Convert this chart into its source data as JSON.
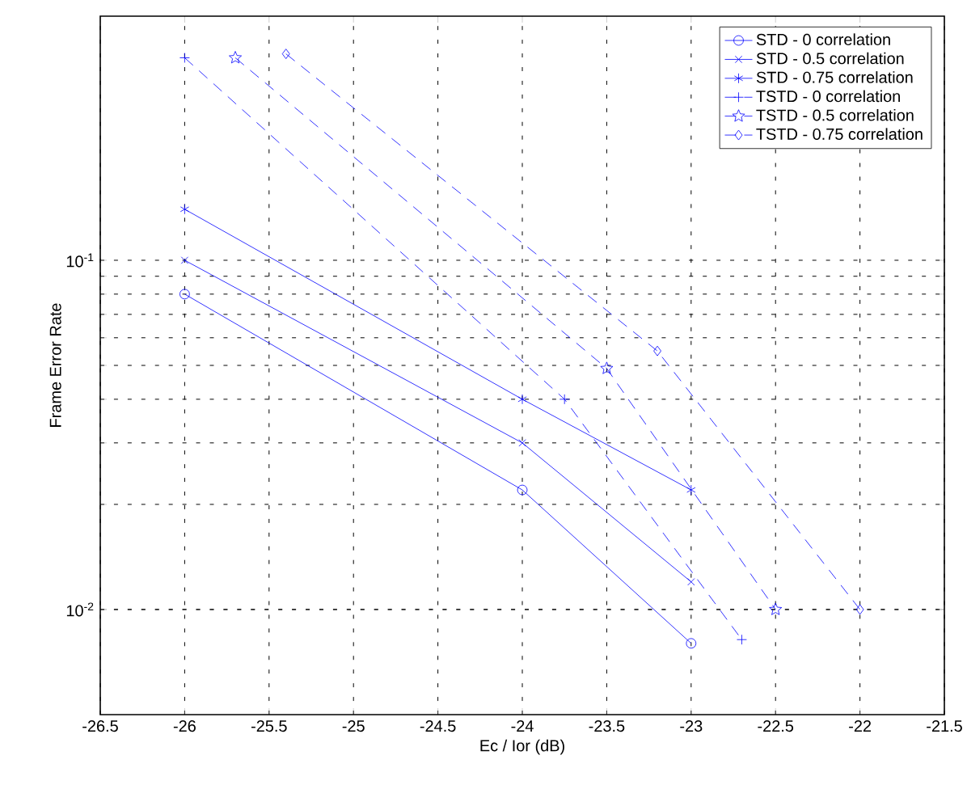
{
  "chart_data": {
    "type": "line",
    "xlabel": "Ec / Ior (dB)",
    "ylabel": "Frame Error Rate",
    "log": "y",
    "grid": true,
    "legend": "top right",
    "xlim": [
      -26.5,
      -21.5
    ],
    "xticks": [
      -26.5,
      -26,
      -25.5,
      -25,
      -24.5,
      -24,
      -23.5,
      -23,
      -22.5,
      -22,
      -21.5
    ],
    "ylim": [
      0.005,
      0.5
    ],
    "yticks": [
      {
        "value": 0.01,
        "label": "10$^{-2}$"
      },
      {
        "value": 0.1,
        "label": "10$^{-1}$"
      }
    ],
    "series": [
      {
        "name": "STD - 0 correlation",
        "color": "#0000ff",
        "marker": "circle",
        "line_style": "solid",
        "x": [
          -26,
          -24,
          -23
        ],
        "values": [
          0.08,
          0.022,
          0.008
        ]
      },
      {
        "name": "STD - 0.5 correlation",
        "color": "#0000ff",
        "marker": "x",
        "line_style": "solid",
        "x": [
          -26,
          -24,
          -23
        ],
        "values": [
          0.1,
          0.03,
          0.012
        ]
      },
      {
        "name": "STD - 0.75 correlation",
        "color": "#0000ff",
        "marker": "cross",
        "line_style": "solid",
        "x": [
          -26,
          -24,
          -23
        ],
        "values": [
          0.14,
          0.04,
          0.022
        ]
      },
      {
        "name": "TSTD - 0 correlation",
        "color": "#0000ff",
        "marker": "plus",
        "line_style": "dashed",
        "x": [
          -26,
          -23.75,
          -22.7
        ],
        "values": [
          0.38,
          0.04,
          0.0082
        ]
      },
      {
        "name": "TSTD - 0.5 correlation",
        "color": "#0000ff",
        "marker": "star",
        "line_style": "dashed",
        "x": [
          -25.7,
          -23.5,
          -22.5
        ],
        "values": [
          0.38,
          0.049,
          0.01
        ]
      },
      {
        "name": "TSTD - 0.75 correlation",
        "color": "#0000ff",
        "marker": "diamond",
        "line_style": "dashed",
        "x": [
          -25.4,
          -23.2,
          -22
        ],
        "values": [
          0.39,
          0.055,
          0.01
        ]
      }
    ]
  }
}
